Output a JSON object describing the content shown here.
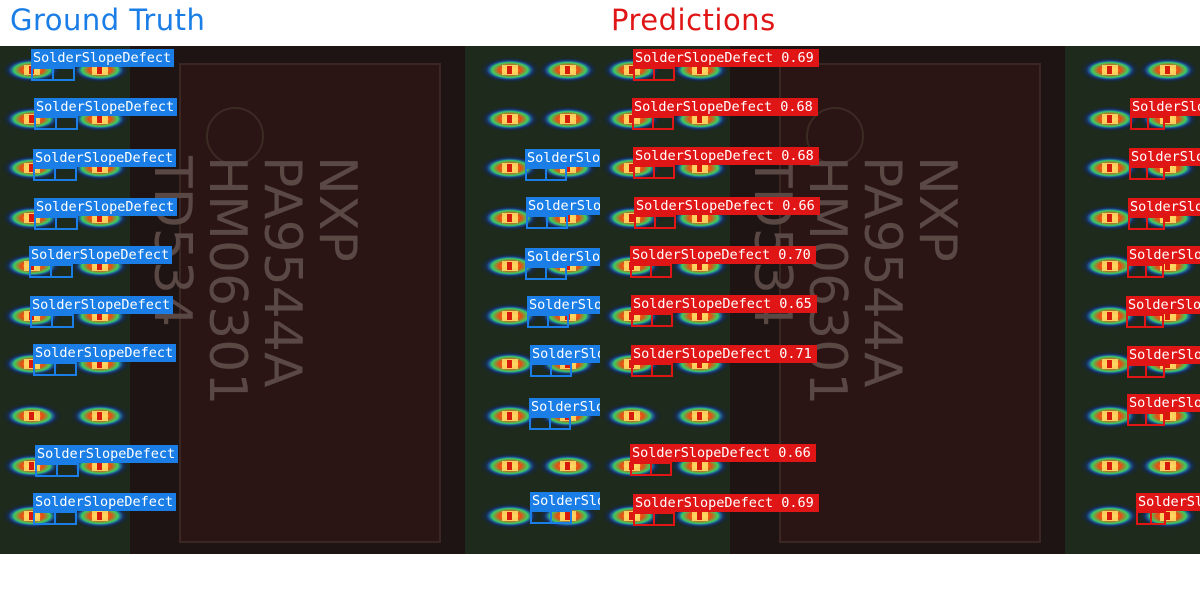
{
  "titles": {
    "ground_truth": "Ground Truth",
    "predictions": "Predictions"
  },
  "colors": {
    "gt": "#1a7ee6",
    "pred": "#e01616",
    "chip": "#2a1414",
    "board": "#1e2a1c"
  },
  "chip_marking": [
    "NXP",
    "PA9544A",
    "HM06301",
    "TD534"
  ],
  "ground_truth_labels": [
    "SolderSlopeDefect",
    "SolderSlopeDefect",
    "SolderSlopeDefect",
    "SolderSlopeDefect",
    "SolderSlopeDefect",
    "SolderSlopeDefect",
    "SolderSlopeDefect",
    "SolderSlopeDefect",
    "SolderSlopeDefect",
    "SolderSlo",
    "SolderSlo",
    "SolderSlo",
    "SolderSlo",
    "SolderSlo",
    "SolderSlo",
    "SolderSlo"
  ],
  "prediction_labels": [
    "SolderSlopeDefect 0.69",
    "SolderSlopeDefect 0.68",
    "SolderSlopeDefect 0.68",
    "SolderSlopeDefect 0.66",
    "SolderSlopeDefect 0.70",
    "SolderSlopeDefect 0.65",
    "SolderSlopeDefect 0.71",
    "SolderSlopeDefect 0.66",
    "SolderSlopeDefect 0.69",
    "SolderSlo",
    "SolderSlo",
    "SolderSlo",
    "SolderSlo",
    "SolderSlo",
    "SolderSlo",
    "SolderSl"
  ]
}
